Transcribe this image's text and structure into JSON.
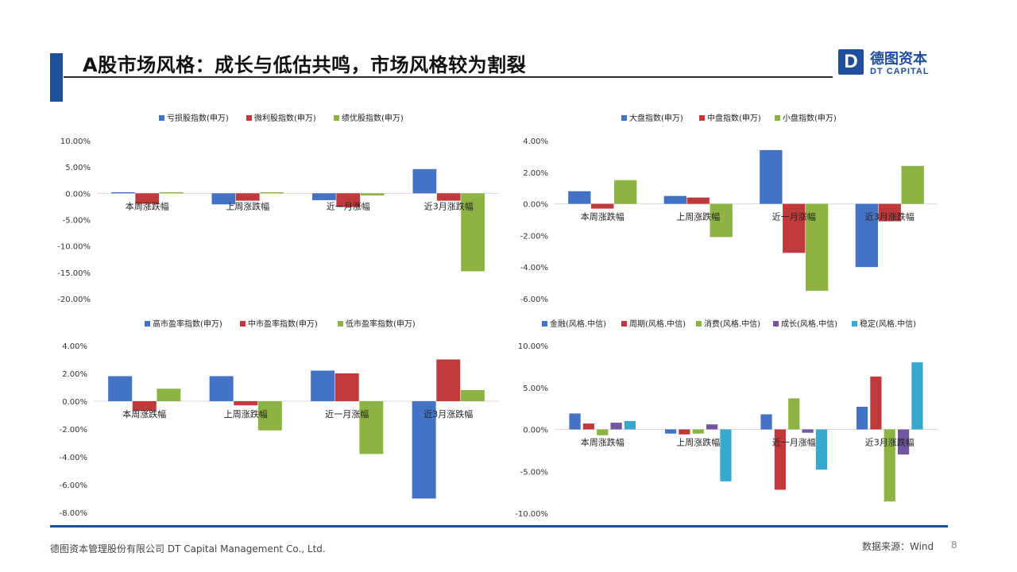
{
  "slide": {
    "title": "A股市场风格：成长与低估共鸣，市场风格较为割裂",
    "logo_cn": "德图资本",
    "logo_en": "DT CAPITAL",
    "logo_letter": "D",
    "footer_left": "德图资本管理股份有限公司  DT Capital  Management  Co., Ltd.",
    "footer_source": "数据来源：Wind",
    "page_number": "8"
  },
  "colors": {
    "blue": "#4472c4",
    "red": "#c0393b",
    "green": "#8db443",
    "purple": "#7356a2",
    "teal": "#37a9cc",
    "brand": "#1f4e9a"
  },
  "chart_data": [
    {
      "type": "bar",
      "categories": [
        "本周涨跌幅",
        "上周涨跌幅",
        "近一月涨幅",
        "近3月涨跌幅"
      ],
      "series": [
        {
          "name": "亏损股指数(申万)",
          "values": [
            0.2,
            -2.1,
            -1.3,
            4.6
          ]
        },
        {
          "name": "微利股指数(申万)",
          "values": [
            -2.0,
            -1.4,
            -2.6,
            -1.4
          ]
        },
        {
          "name": "绩优股指数(申万)",
          "values": [
            0.2,
            0.2,
            -0.4,
            -14.8
          ]
        }
      ],
      "yticks": [
        "10.00%",
        "5.00%",
        "0.00%",
        "-5.00%",
        "-10.00%",
        "-15.00%",
        "-20.00%"
      ],
      "ylim": [
        -20,
        10
      ],
      "legend": "top"
    },
    {
      "type": "bar",
      "categories": [
        "本周涨跌幅",
        "上周涨跌幅",
        "近一月涨幅",
        "近3月涨跌幅"
      ],
      "series": [
        {
          "name": "大盘指数(申万)",
          "values": [
            0.8,
            0.5,
            3.4,
            -4.0
          ]
        },
        {
          "name": "中盘指数(申万)",
          "values": [
            -0.3,
            0.4,
            -3.1,
            -1.1
          ]
        },
        {
          "name": "小盘指数(申万)",
          "values": [
            1.5,
            -2.1,
            -5.5,
            2.4
          ]
        }
      ],
      "yticks": [
        "4.00%",
        "2.00%",
        "0.00%",
        "-2.00%",
        "-4.00%",
        "-6.00%"
      ],
      "ylim": [
        -6,
        4
      ],
      "legend": "top"
    },
    {
      "type": "bar",
      "categories": [
        "本周涨跌幅",
        "上周涨跌幅",
        "近一月涨幅",
        "近3月涨跌幅"
      ],
      "series": [
        {
          "name": "高市盈率指数(申万)",
          "values": [
            1.8,
            1.8,
            2.2,
            -7.0
          ]
        },
        {
          "name": "中市盈率指数(申万)",
          "values": [
            -0.7,
            -0.3,
            2.0,
            3.0
          ]
        },
        {
          "name": "低市盈率指数(申万)",
          "values": [
            0.9,
            -2.1,
            -3.8,
            0.8
          ]
        }
      ],
      "yticks": [
        "4.00%",
        "2.00%",
        "0.00%",
        "-2.00%",
        "-4.00%",
        "-6.00%",
        "-8.00%"
      ],
      "ylim": [
        -8,
        4
      ],
      "legend": "top"
    },
    {
      "type": "bar",
      "categories": [
        "本周涨跌幅",
        "上周涨跌幅",
        "近一月涨幅",
        "近3月涨跌幅"
      ],
      "series": [
        {
          "name": "金融(风格.中信)",
          "values": [
            1.9,
            -0.5,
            1.8,
            2.7
          ]
        },
        {
          "name": "周期(风格.中信)",
          "values": [
            0.7,
            -0.6,
            -7.2,
            6.3
          ]
        },
        {
          "name": "消费(风格.中信)",
          "values": [
            -0.7,
            -0.5,
            3.7,
            -8.6
          ]
        },
        {
          "name": "成长(风格.中信)",
          "values": [
            0.8,
            0.6,
            -0.4,
            -3.0
          ]
        },
        {
          "name": "稳定(风格.中信)",
          "values": [
            1.0,
            -6.2,
            -4.8,
            8.0
          ]
        }
      ],
      "yticks": [
        "10.00%",
        "5.00%",
        "0.00%",
        "-5.00%",
        "-10.00%"
      ],
      "ylim": [
        -10,
        10
      ],
      "legend": "top"
    }
  ]
}
